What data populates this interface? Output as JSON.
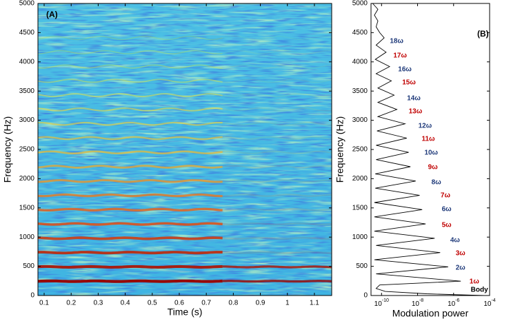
{
  "chart_data": [
    {
      "type": "spectrogram",
      "title": "(A)",
      "xlabel": "Time (s)",
      "ylabel": "Frequency (Hz)",
      "xlim": [
        0.077,
        1.164
      ],
      "ylim": [
        0,
        5000
      ],
      "xticks": [
        0.1,
        0.2,
        0.3,
        0.4,
        0.5,
        0.6,
        0.7,
        0.8,
        0.9,
        1,
        1.1
      ],
      "yticks": [
        0,
        500,
        1000,
        1500,
        2000,
        2500,
        3000,
        3500,
        4000,
        4500,
        5000
      ],
      "values": [
        245,
        490,
        735,
        980,
        1225,
        1470,
        1715,
        1960,
        2205,
        2450,
        2695,
        2940,
        3185,
        3430,
        3675,
        3920,
        4165,
        4410
      ],
      "voiced_until": 0.76
    },
    {
      "type": "line",
      "title": "(B)",
      "xlabel": "Modulation power",
      "ylabel": "Frequency (Hz)",
      "xscale": "log",
      "color": "#000000",
      "xlim": [
        2.6e-11,
        0.0001
      ],
      "ylim": [
        0,
        5000
      ],
      "xticks": [
        {
          "value": 1e-10,
          "base": "10",
          "exponent": "-10"
        },
        {
          "value": 1e-08,
          "base": "10",
          "exponent": "-8"
        },
        {
          "value": 1e-06,
          "base": "10",
          "exponent": "-6"
        },
        {
          "value": 0.0001,
          "base": "10",
          "exponent": "-4"
        }
      ],
      "yticks": [
        0,
        500,
        1000,
        1500,
        2000,
        2500,
        3000,
        3500,
        4000,
        4500,
        5000
      ],
      "y": [
        0,
        30,
        70,
        120,
        180,
        245,
        370,
        490,
        612,
        735,
        857,
        980,
        1102,
        1225,
        1347,
        1470,
        1592,
        1715,
        1837,
        1960,
        2082,
        2205,
        2327,
        2450,
        2572,
        2695,
        2817,
        2940,
        3062,
        3185,
        3307,
        3430,
        3552,
        3675,
        3797,
        3920,
        4042,
        4165,
        4287,
        4410,
        4500,
        4600,
        4700,
        4800,
        4900,
        5000
      ],
      "values": [
        5e-05,
        3.2e-08,
        1.6e-10,
        5e-11,
        7.9e-11,
        2.5e-06,
        5e-11,
        5e-07,
        4e-11,
        1.8e-07,
        5e-11,
        8.9e-08,
        4e-11,
        2.8e-08,
        4e-11,
        1.8e-08,
        4e-11,
        1.3e-08,
        4.5e-11,
        7.9e-09,
        4.5e-11,
        4e-09,
        5e-11,
        3.2e-09,
        5e-11,
        2.5e-09,
        5.6e-11,
        2e-09,
        6.3e-11,
        7.1e-10,
        6.3e-11,
        5e-10,
        6.3e-11,
        3.5e-10,
        5e-11,
        2.8e-10,
        4.5e-11,
        1.8e-10,
        5e-11,
        1.4e-10,
        7.9e-11,
        5e-11,
        6.3e-11,
        4e-11,
        6.3e-11,
        3.2e-11
      ],
      "annotations": [
        {
          "text": "1ω",
          "x": 7.6e-06,
          "y": 236,
          "color": "#c00000"
        },
        {
          "text": "2ω",
          "x": 1.3e-06,
          "y": 472,
          "color": "#1f3a7a"
        },
        {
          "text": "3ω",
          "x": 1.3e-06,
          "y": 719,
          "color": "#c00000"
        },
        {
          "text": "4ω",
          "x": 6.5e-07,
          "y": 943,
          "color": "#1f3a7a"
        },
        {
          "text": "5ω",
          "x": 2.2e-07,
          "y": 1203,
          "color": "#c00000"
        },
        {
          "text": "6ω",
          "x": 2.2e-07,
          "y": 1474,
          "color": "#1f3a7a"
        },
        {
          "text": "7ω",
          "x": 1.9e-07,
          "y": 1710,
          "color": "#c00000"
        },
        {
          "text": "8ω",
          "x": 5.9e-08,
          "y": 1934,
          "color": "#1f3a7a"
        },
        {
          "text": "9ω",
          "x": 3.8e-08,
          "y": 2193,
          "color": "#c00000"
        },
        {
          "text": "10ω",
          "x": 2.4e-08,
          "y": 2441,
          "color": "#1f3a7a"
        },
        {
          "text": "11ω",
          "x": 1.7e-08,
          "y": 2677,
          "color": "#c00000"
        },
        {
          "text": "12ω",
          "x": 1.1e-08,
          "y": 2901,
          "color": "#1f3a7a"
        },
        {
          "text": "13ω",
          "x": 3.2e-09,
          "y": 3149,
          "color": "#c00000"
        },
        {
          "text": "14ω",
          "x": 2.6e-09,
          "y": 3373,
          "color": "#1f3a7a"
        },
        {
          "text": "15ω",
          "x": 1.4e-09,
          "y": 3644,
          "color": "#c00000"
        },
        {
          "text": "16ω",
          "x": 8.3e-10,
          "y": 3868,
          "color": "#1f3a7a"
        },
        {
          "text": "17ω",
          "x": 4.5e-10,
          "y": 4104,
          "color": "#c00000"
        },
        {
          "text": "18ω",
          "x": 2.9e-10,
          "y": 4352,
          "color": "#1f3a7a"
        },
        {
          "text": "Body",
          "x": 9e-06,
          "y": 94,
          "color": "#000000"
        }
      ]
    }
  ]
}
